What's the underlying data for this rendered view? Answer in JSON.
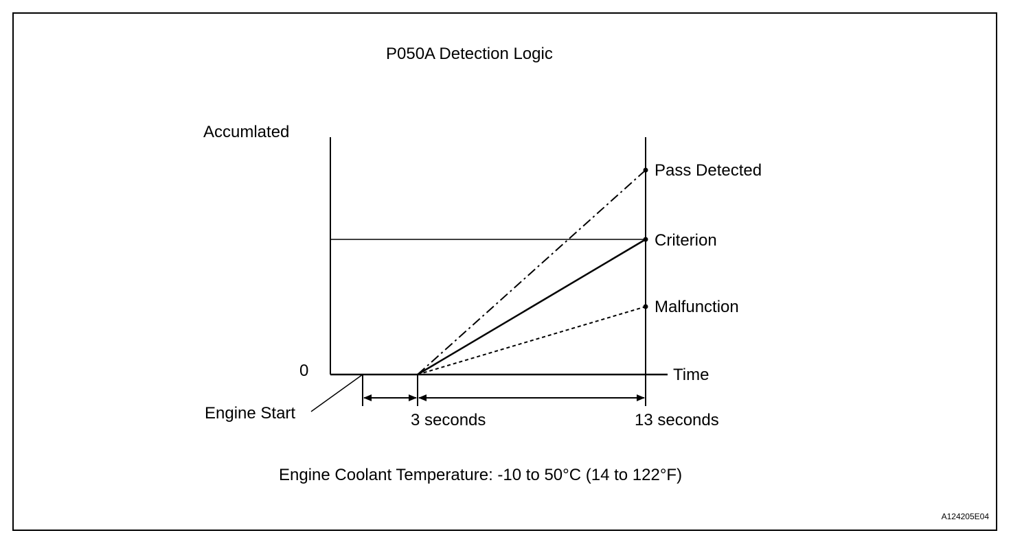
{
  "diagram": {
    "title": "P050A Detection Logic",
    "y_axis_label": "Accumlated",
    "y_zero_label": "0",
    "x_axis_label": "Time",
    "engine_start_label": "Engine Start",
    "time_marker_1": "3 seconds",
    "time_marker_2": "13 seconds",
    "lines": [
      {
        "label": "Pass Detected",
        "style": "dash-dot"
      },
      {
        "label": "Criterion",
        "style": "solid"
      },
      {
        "label": "Malfunction",
        "style": "dashed"
      }
    ],
    "condition_note": "Engine Coolant Temperature: -10 to 50°C (14 to 122°F)",
    "reference_code": "A124205E04"
  }
}
